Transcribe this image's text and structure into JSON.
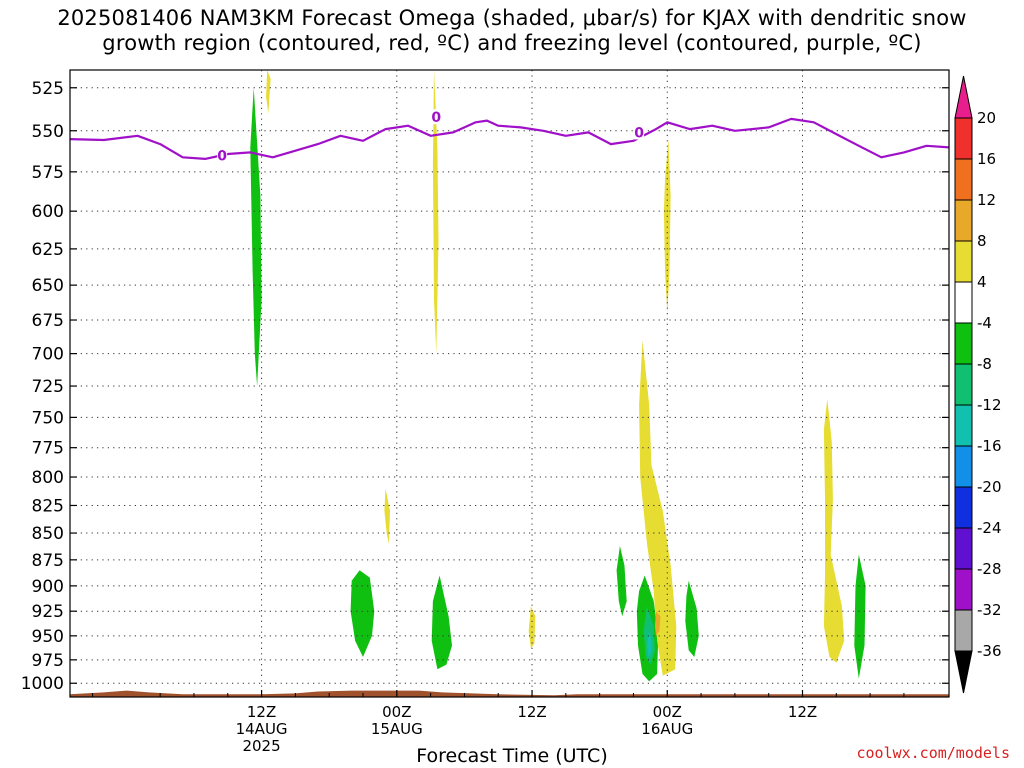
{
  "title": {
    "line1": "2025081406 NAM3KM Forecast Omega (shaded, μbar/s) for KJAX with dendritic snow",
    "line2": "growth region (contoured, red, ºC) and freezing level (contoured, purple, ºC)"
  },
  "credit": "coolwx.com/models",
  "chart_data": {
    "type": "heatmap",
    "title": "2025081406 NAM3KM Forecast Omega (shaded, μbar/s) for KJAX with dendritic snow growth region (contoured, red, ºC) and freezing level (contoured, purple, ºC)",
    "xlabel": "Forecast Time (UTC)",
    "ylabel": "",
    "x_unit": "hours since 2025-08-14 06Z",
    "xlim": [
      -5,
      73
    ],
    "ylim": [
      1015,
      515
    ],
    "y_scale": "log",
    "y_ticks": [
      525,
      550,
      575,
      600,
      625,
      650,
      675,
      700,
      725,
      750,
      775,
      800,
      825,
      850,
      875,
      900,
      925,
      950,
      975,
      1000
    ],
    "x_ticks": [
      {
        "x": 12,
        "lines": [
          "12Z",
          "14AUG",
          "2025"
        ]
      },
      {
        "x": 24,
        "lines": [
          "00Z",
          "15AUG"
        ]
      },
      {
        "x": 36,
        "lines": [
          "12Z"
        ]
      },
      {
        "x": 48,
        "lines": [
          "00Z",
          "16AUG"
        ]
      },
      {
        "x": 60,
        "lines": [
          "12Z"
        ]
      }
    ],
    "grid": true,
    "colorbar": {
      "labels": [
        20,
        16,
        12,
        8,
        4,
        -4,
        -8,
        -12,
        -16,
        -20,
        -24,
        -28,
        -32,
        -36
      ],
      "colors": [
        "#e81e8c",
        "#f0302c",
        "#f07020",
        "#e8a82a",
        "#e6dc32",
        "#ffffff",
        "#10c010",
        "#10c070",
        "#12c0b0",
        "#1290e8",
        "#1030e0",
        "#6010d0",
        "#a010c8",
        "#a8a8a8"
      ]
    },
    "freezing_level": {
      "color": "#a010c8",
      "label": "0",
      "points": [
        [
          -5,
          555
        ],
        [
          -2,
          555.5
        ],
        [
          1,
          553
        ],
        [
          3,
          558
        ],
        [
          5,
          566
        ],
        [
          7,
          567
        ],
        [
          9,
          564
        ],
        [
          11,
          563
        ],
        [
          13,
          566
        ],
        [
          15,
          562
        ],
        [
          17,
          558
        ],
        [
          19,
          553
        ],
        [
          21,
          556
        ],
        [
          23,
          549
        ],
        [
          25,
          547
        ],
        [
          27,
          553
        ],
        [
          29,
          551
        ],
        [
          31,
          545
        ],
        [
          32,
          544
        ],
        [
          33,
          547
        ],
        [
          35,
          548
        ],
        [
          37,
          550
        ],
        [
          39,
          553
        ],
        [
          41,
          551
        ],
        [
          43,
          558
        ],
        [
          45,
          556
        ],
        [
          47,
          549
        ],
        [
          48,
          545
        ],
        [
          50,
          549
        ],
        [
          52,
          547
        ],
        [
          54,
          550
        ],
        [
          57,
          548
        ],
        [
          59,
          543
        ],
        [
          61,
          545
        ],
        [
          63,
          552
        ],
        [
          65,
          559
        ],
        [
          67,
          566
        ],
        [
          69,
          563
        ],
        [
          71,
          559
        ],
        [
          73,
          560
        ]
      ],
      "label_points": [
        [
          8.5,
          565
        ],
        [
          27.5,
          542
        ],
        [
          45.5,
          551
        ]
      ]
    },
    "omega_regions": [
      {
        "value": -6,
        "points": [
          [
            11.3,
            525
          ],
          [
            11.9,
            590
          ],
          [
            12.0,
            660
          ],
          [
            11.6,
            725
          ],
          [
            11.4,
            700
          ],
          [
            11.2,
            640
          ],
          [
            11.0,
            560
          ]
        ]
      },
      {
        "value": -6,
        "points": [
          [
            20.7,
            885
          ],
          [
            21.6,
            892
          ],
          [
            22.0,
            925
          ],
          [
            21.8,
            950
          ],
          [
            21.0,
            972
          ],
          [
            20.3,
            955
          ],
          [
            19.9,
            925
          ],
          [
            20.0,
            895
          ]
        ]
      },
      {
        "value": -6,
        "points": [
          [
            27.8,
            890
          ],
          [
            28.6,
            930
          ],
          [
            28.9,
            960
          ],
          [
            28.4,
            980
          ],
          [
            27.6,
            985
          ],
          [
            27.1,
            955
          ],
          [
            27.2,
            915
          ]
        ]
      },
      {
        "value": -6,
        "points": [
          [
            43.8,
            862
          ],
          [
            44.2,
            880
          ],
          [
            44.4,
            915
          ],
          [
            44.0,
            930
          ],
          [
            43.7,
            915
          ],
          [
            43.5,
            885
          ]
        ]
      },
      {
        "value": -6,
        "points": [
          [
            46.0,
            890
          ],
          [
            46.8,
            915
          ],
          [
            47.2,
            950
          ],
          [
            47.1,
            990
          ],
          [
            46.4,
            998
          ],
          [
            45.8,
            990
          ],
          [
            45.4,
            960
          ],
          [
            45.3,
            925
          ],
          [
            45.5,
            905
          ]
        ]
      },
      {
        "value": -10,
        "points": [
          [
            46.2,
            920
          ],
          [
            46.8,
            940
          ],
          [
            46.9,
            965
          ],
          [
            46.5,
            980
          ],
          [
            46.1,
            972
          ],
          [
            45.9,
            945
          ]
        ]
      },
      {
        "value": -14,
        "points": [
          [
            46.35,
            945
          ],
          [
            46.6,
            955
          ],
          [
            46.6,
            968
          ],
          [
            46.35,
            972
          ],
          [
            46.2,
            960
          ]
        ]
      },
      {
        "value": -6,
        "points": [
          [
            49.9,
            895
          ],
          [
            50.6,
            922
          ],
          [
            50.8,
            950
          ],
          [
            50.4,
            972
          ],
          [
            49.9,
            965
          ],
          [
            49.6,
            935
          ],
          [
            49.7,
            910
          ]
        ]
      },
      {
        "value": -6,
        "points": [
          [
            65.0,
            870
          ],
          [
            65.6,
            900
          ],
          [
            65.5,
            960
          ],
          [
            65.0,
            995
          ],
          [
            64.6,
            960
          ],
          [
            64.7,
            900
          ]
        ]
      },
      {
        "value": 6,
        "points": [
          [
            12.5,
            515
          ],
          [
            12.8,
            520
          ],
          [
            12.6,
            540
          ],
          [
            12.4,
            530
          ]
        ]
      },
      {
        "value": 6,
        "points": [
          [
            27.3,
            515
          ],
          [
            27.6,
            560
          ],
          [
            27.7,
            620
          ],
          [
            27.5,
            700
          ],
          [
            27.3,
            660
          ],
          [
            27.2,
            570
          ]
        ]
      },
      {
        "value": 6,
        "points": [
          [
            23.0,
            810
          ],
          [
            23.4,
            830
          ],
          [
            23.3,
            860
          ],
          [
            23.1,
            850
          ],
          [
            22.9,
            830
          ]
        ]
      },
      {
        "value": 6,
        "points": [
          [
            35.9,
            920
          ],
          [
            36.3,
            930
          ],
          [
            36.2,
            958
          ],
          [
            35.9,
            963
          ],
          [
            35.7,
            945
          ]
        ]
      },
      {
        "value": 6,
        "points": [
          [
            48.1,
            555
          ],
          [
            48.3,
            590
          ],
          [
            48.2,
            640
          ],
          [
            48.0,
            670
          ],
          [
            47.8,
            640
          ],
          [
            47.7,
            600
          ],
          [
            47.8,
            580
          ]
        ]
      },
      {
        "value": 6,
        "points": [
          [
            45.8,
            690
          ],
          [
            46.4,
            740
          ],
          [
            46.6,
            790
          ],
          [
            47.6,
            830
          ],
          [
            48.3,
            880
          ],
          [
            48.8,
            940
          ],
          [
            48.7,
            985
          ],
          [
            47.6,
            992
          ],
          [
            47.1,
            955
          ],
          [
            46.8,
            905
          ],
          [
            46.2,
            860
          ],
          [
            45.6,
            800
          ],
          [
            45.5,
            740
          ]
        ]
      },
      {
        "value": 10,
        "points": [
          [
            47.0,
            925
          ],
          [
            47.4,
            930
          ],
          [
            47.3,
            945
          ],
          [
            47.0,
            950
          ],
          [
            46.9,
            940
          ]
        ]
      },
      {
        "value": 6,
        "points": [
          [
            62.2,
            735
          ],
          [
            62.6,
            770
          ],
          [
            62.7,
            820
          ],
          [
            62.5,
            870
          ],
          [
            63.5,
            920
          ],
          [
            63.7,
            955
          ],
          [
            63.0,
            978
          ],
          [
            62.4,
            972
          ],
          [
            61.9,
            940
          ],
          [
            62.0,
            890
          ],
          [
            62.0,
            820
          ],
          [
            61.9,
            760
          ]
        ]
      }
    ],
    "terrain": {
      "color": "#a0522d",
      "points": [
        [
          -5,
          1012
        ],
        [
          -2,
          1010
        ],
        [
          0,
          1008
        ],
        [
          2,
          1010
        ],
        [
          5,
          1012
        ],
        [
          12,
          1012
        ],
        [
          15,
          1011
        ],
        [
          17,
          1009
        ],
        [
          20,
          1008
        ],
        [
          26,
          1008
        ],
        [
          28,
          1010
        ],
        [
          33,
          1012
        ],
        [
          38,
          1013
        ],
        [
          40,
          1012
        ],
        [
          43,
          1012
        ],
        [
          55,
          1012
        ],
        [
          60,
          1012
        ],
        [
          67,
          1012
        ],
        [
          73,
          1012
        ]
      ]
    }
  }
}
